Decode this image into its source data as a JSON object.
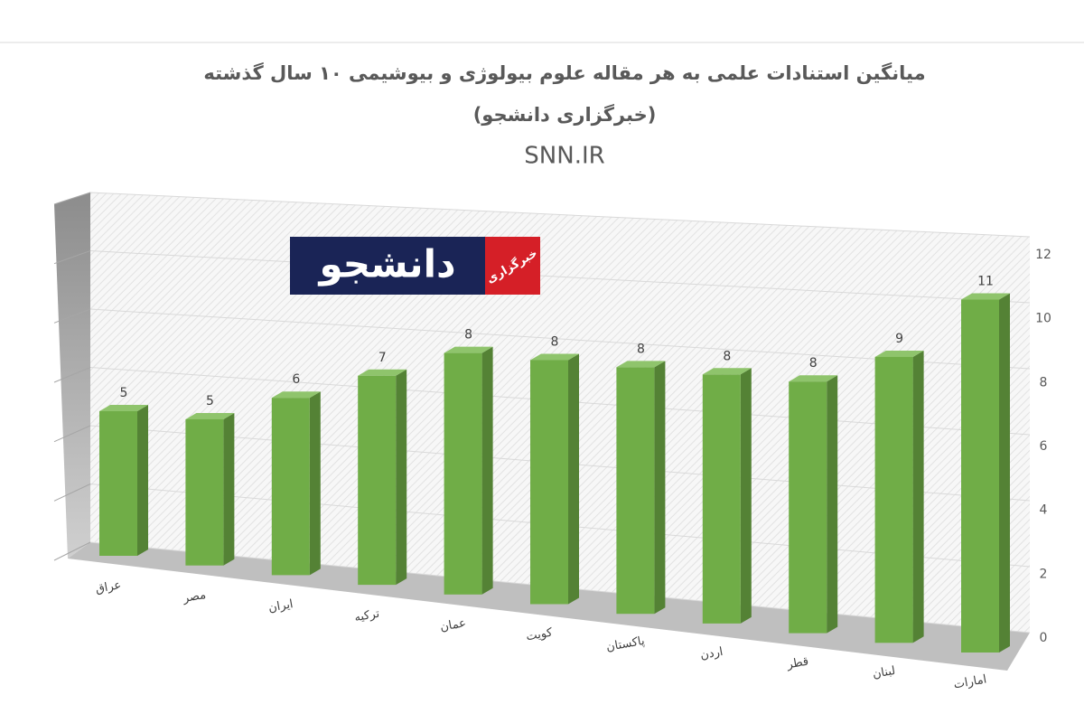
{
  "chart_data": {
    "type": "bar3d",
    "title": "میانگین استنادات علمی به هر مقاله علوم بیولوژی و بیوشیمی ۱۰ سال گذشته",
    "title_line2": "(خبرگزاری دانشجو)",
    "subtitle": "SNN.IR",
    "categories": [
      "عراق",
      "مصر",
      "ایران",
      "ترکیه",
      "عمان",
      "کویت",
      "پاکستان",
      "اردن",
      "قطر",
      "لبنان",
      "امارات"
    ],
    "values": [
      5,
      5,
      6,
      7,
      8,
      8,
      8,
      8,
      8,
      9,
      11
    ],
    "color": "#70ad47",
    "ylim": [
      0,
      12
    ],
    "yticks": [
      0,
      2,
      4,
      6,
      8,
      10,
      12
    ],
    "grid": true,
    "logo": {
      "name": "دانشجو",
      "tag": "خبرگزاری"
    }
  }
}
